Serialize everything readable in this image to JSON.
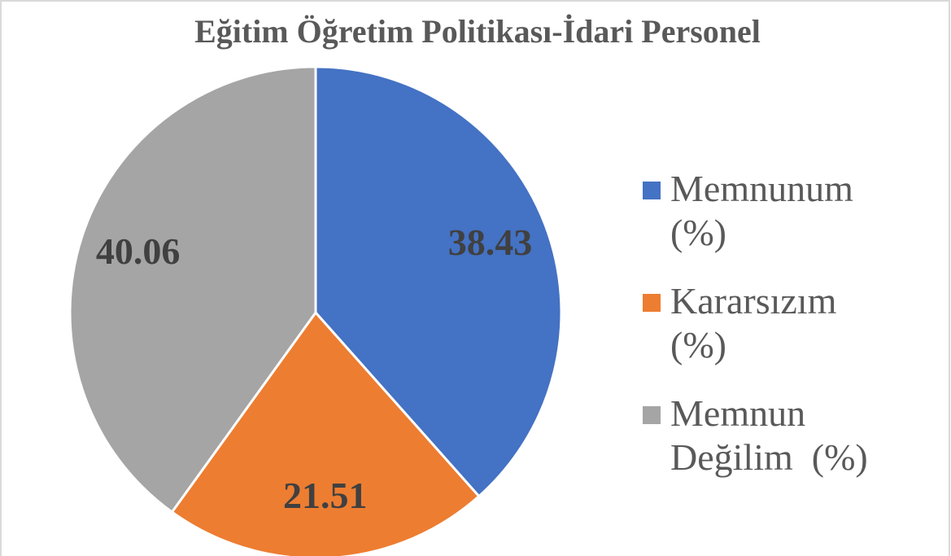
{
  "chart_data": {
    "type": "pie",
    "title": "Eğitim Öğretim Politikası-İdari Personel",
    "categories": [
      "Memnunum (%)",
      "Kararsızım  (%)",
      "Memnun Değilim  (%)"
    ],
    "values": [
      38.43,
      21.51,
      40.06
    ],
    "colors": [
      "#4472c4",
      "#ed7d31",
      "#a5a5a5"
    ],
    "legend": "right"
  }
}
